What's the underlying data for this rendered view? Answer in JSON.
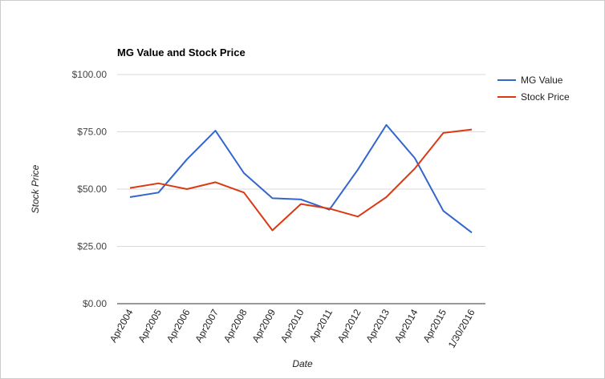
{
  "chart_data": {
    "type": "line",
    "title": "MG Value and Stock Price",
    "xlabel": "Date",
    "ylabel": "Stock Price",
    "ylim": [
      0,
      100
    ],
    "y_ticks": [
      "$0.00",
      "$25.00",
      "$50.00",
      "$75.00",
      "$100.00"
    ],
    "y_tick_values": [
      0,
      25,
      50,
      75,
      100
    ],
    "categories": [
      "Apr2004",
      "Apr2005",
      "Apr2006",
      "Apr2007",
      "Apr2008",
      "Apr2009",
      "Apr2010",
      "Apr2011",
      "Apr2012",
      "Apr2013",
      "Apr2014",
      "Apr2015",
      "1/30/2016"
    ],
    "series": [
      {
        "name": "MG Value",
        "color": "#3366cc",
        "values": [
          46.5,
          48.5,
          63,
          75.5,
          57,
          46,
          45.5,
          41,
          58.5,
          78,
          63.5,
          40.5,
          31
        ]
      },
      {
        "name": "Stock Price",
        "color": "#dc3912",
        "values": [
          50.5,
          52.5,
          50,
          53,
          48.5,
          32,
          43.5,
          41.5,
          38,
          46.5,
          59,
          74.5,
          76
        ]
      }
    ],
    "grid": true,
    "legend_position": "right"
  }
}
